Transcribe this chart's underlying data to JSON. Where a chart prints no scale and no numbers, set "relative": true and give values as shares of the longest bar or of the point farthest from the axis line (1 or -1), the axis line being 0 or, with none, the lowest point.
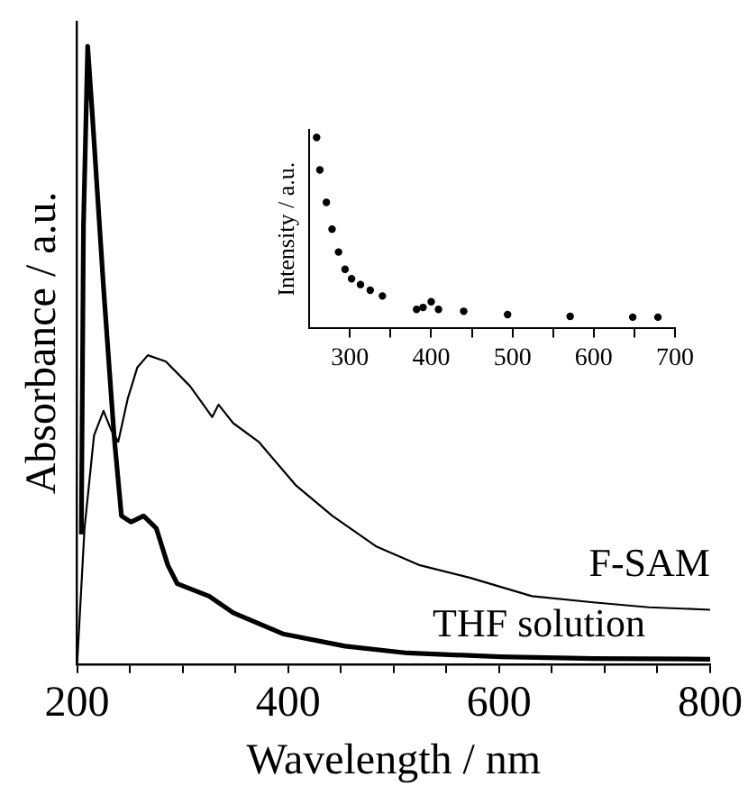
{
  "chart_data": [
    {
      "type": "line",
      "xlabel": "Wavelength / nm",
      "ylabel": "Absorbance / a.u.",
      "relative": true,
      "xlim": [
        200,
        800
      ],
      "xticks": [
        200,
        {
          "value": 250,
          "label": null
        },
        {
          "value": 300,
          "label": null
        },
        {
          "value": 350,
          "label": null
        },
        400,
        {
          "value": 450,
          "label": null
        },
        {
          "value": 500,
          "label": null
        },
        {
          "value": 550,
          "label": null
        },
        600,
        {
          "value": 650,
          "label": null
        },
        {
          "value": 700,
          "label": null
        },
        {
          "value": 750,
          "label": null
        },
        800
      ],
      "legend": false,
      "grid": false,
      "marker": "none",
      "series": [
        {
          "name": "F-SAM",
          "color": "#000000",
          "x": [
            200,
            207,
            216,
            225,
            232,
            239,
            248,
            257,
            267,
            284,
            307,
            328,
            334,
            348,
            372,
            407,
            442,
            484,
            525,
            572,
            631,
            689,
            742,
            800
          ],
          "values": [
            0,
            0.22,
            0.37,
            0.41,
            0.38,
            0.36,
            0.43,
            0.48,
            0.5,
            0.49,
            0.45,
            0.4,
            0.42,
            0.39,
            0.36,
            0.29,
            0.24,
            0.19,
            0.16,
            0.14,
            0.11,
            0.1,
            0.092,
            0.088
          ]
        },
        {
          "name": "THF solution",
          "color": "#000000",
          "x": [
            204,
            206,
            210,
            214,
            225,
            235,
            242,
            251,
            263,
            275,
            286,
            295,
            325,
            348,
            395,
            454,
            513,
            601,
            689,
            800
          ],
          "values": [
            0.21,
            0.71,
            1,
            0.9,
            0.61,
            0.37,
            0.24,
            0.23,
            0.24,
            0.22,
            0.16,
            0.13,
            0.11,
            0.083,
            0.049,
            0.029,
            0.018,
            0.012,
            0.009,
            0.008
          ]
        }
      ]
    },
    {
      "type": "scatter",
      "ylabel": "Intensity / a.u.",
      "relative": true,
      "xlim": [
        250,
        700
      ],
      "xticks": [
        300,
        {
          "value": 350,
          "label": null
        },
        400,
        {
          "value": 450,
          "label": null
        },
        500,
        {
          "value": 550,
          "label": null
        },
        600,
        {
          "value": 650,
          "label": null
        },
        700
      ],
      "legend": false,
      "grid": false,
      "marker": "circle",
      "series": [
        {
          "color": "#000000",
          "x": [
            259,
            263,
            271,
            278,
            286,
            294,
            302,
            313,
            325,
            340,
            382,
            390,
            400,
            409,
            440,
            494,
            571,
            648,
            679
          ],
          "values": [
            1,
            0.83,
            0.66,
            0.52,
            0.4,
            0.31,
            0.26,
            0.23,
            0.2,
            0.17,
            0.1,
            0.11,
            0.14,
            0.1,
            0.09,
            0.073,
            0.063,
            0.059,
            0.059
          ]
        }
      ]
    }
  ]
}
